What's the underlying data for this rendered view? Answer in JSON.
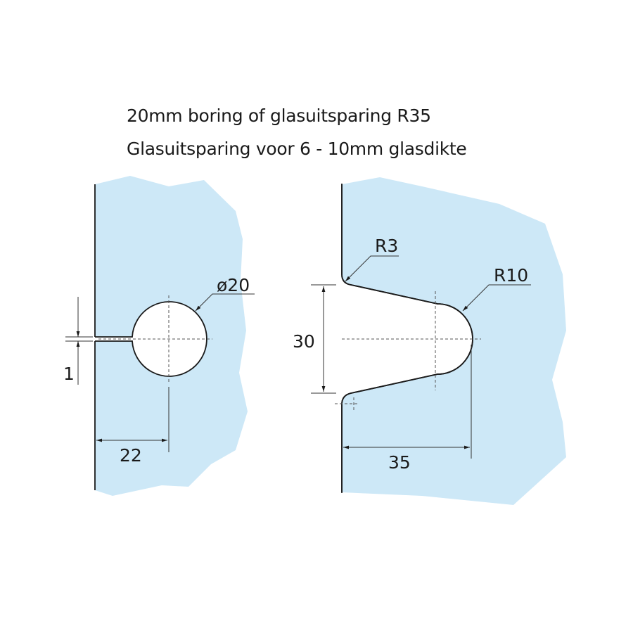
{
  "title_lines": [
    "20mm boring of glasuitsparing R35",
    "Glasuitsparing voor 6 - 10mm glasdikte"
  ],
  "colors": {
    "glass": "#cde8f7",
    "line": "#1a1a1a",
    "dim": "#555555"
  },
  "left_detail": {
    "hole_diameter_label": "ø20",
    "slot_width_label": "1",
    "edge_distance_label": "22"
  },
  "right_detail": {
    "corner_radius_label": "R3",
    "end_radius_label": "R10",
    "opening_width_label": "30",
    "depth_label": "35"
  }
}
